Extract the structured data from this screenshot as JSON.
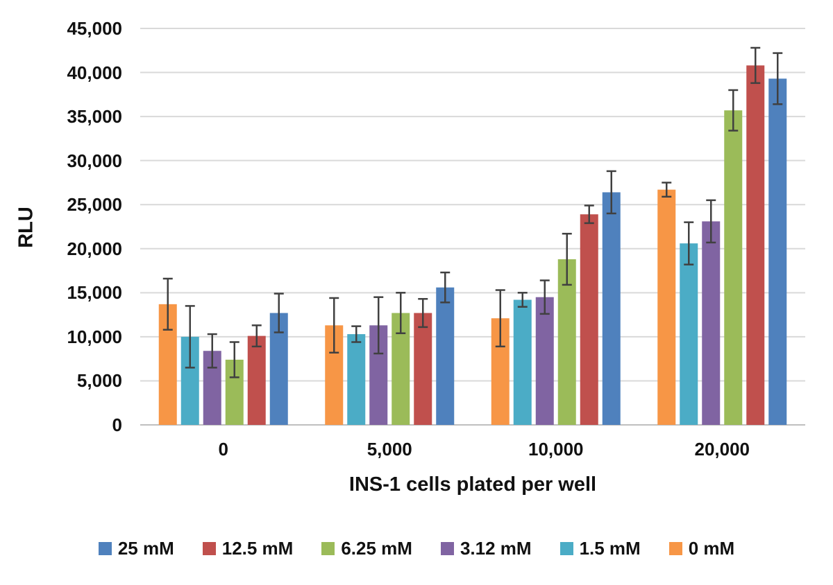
{
  "chart_data": {
    "type": "bar",
    "title": "",
    "xlabel": "INS-1 cells plated per well",
    "ylabel": "RLU",
    "categories": [
      "0",
      "5,000",
      "10,000",
      "20,000"
    ],
    "y_ticks": [
      "0",
      "5,000",
      "10,000",
      "15,000",
      "20,000",
      "25,000",
      "30,000",
      "35,000",
      "40,000",
      "45,000"
    ],
    "y_tick_values": [
      0,
      5000,
      10000,
      15000,
      20000,
      25000,
      30000,
      35000,
      40000,
      45000
    ],
    "ylim": [
      0,
      45000
    ],
    "grid": true,
    "legend_position": "bottom",
    "series": [
      {
        "name": "25 mM",
        "color": "#4F81BD",
        "values": [
          12700,
          15600,
          26400,
          39300
        ],
        "errors": [
          2200,
          1700,
          2400,
          2900
        ]
      },
      {
        "name": "12.5 mM",
        "color": "#C0504D",
        "values": [
          10100,
          12700,
          23900,
          40800
        ],
        "errors": [
          1200,
          1600,
          1000,
          2000
        ]
      },
      {
        "name": "6.25 mM",
        "color": "#9BBB59",
        "values": [
          7400,
          12700,
          18800,
          35700
        ],
        "errors": [
          2000,
          2300,
          2900,
          2300
        ]
      },
      {
        "name": "3.12 mM",
        "color": "#8064A2",
        "values": [
          8400,
          11300,
          14500,
          23100
        ],
        "errors": [
          1900,
          3200,
          1900,
          2400
        ]
      },
      {
        "name": "1.5 mM",
        "color": "#4BACC6",
        "values": [
          10000,
          10300,
          14200,
          20600
        ],
        "errors": [
          3500,
          900,
          800,
          2400
        ]
      },
      {
        "name": "0 mM",
        "color": "#F79646",
        "values": [
          13700,
          11300,
          12100,
          26700
        ],
        "errors": [
          2900,
          3100,
          3200,
          800
        ]
      }
    ],
    "bar_plot_order": [
      "0 mM",
      "1.5 mM",
      "3.12 mM",
      "6.25 mM",
      "12.5 mM",
      "25 mM"
    ],
    "colors": {
      "error_bar": "#404040",
      "gridline": "#D9D9D9",
      "axis_line": "#BFBFBF",
      "text": "#111111",
      "background": "#FFFFFF"
    }
  }
}
